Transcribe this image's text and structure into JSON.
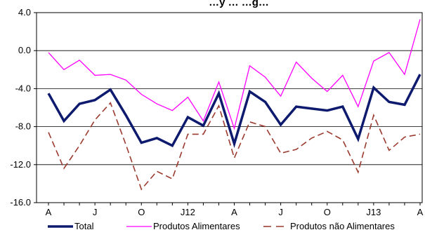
{
  "chart_data": {
    "type": "line",
    "title": "…y … …g…",
    "xlabel": "",
    "ylabel": "",
    "ylim": [
      -16,
      4
    ],
    "y_ticks": [
      "4.0",
      "0.0",
      "-4.0",
      "-8.0",
      "-12.0",
      "-16.0"
    ],
    "y_tick_values": [
      4,
      0,
      -4,
      -8,
      -12,
      -16
    ],
    "x_tick_labels": [
      "A",
      "J",
      "O",
      "J12",
      "A",
      "J",
      "O",
      "J13",
      "A"
    ],
    "x_tick_indices": [
      0,
      3,
      6,
      9,
      12,
      15,
      18,
      21,
      24
    ],
    "gridlines": true,
    "legend_position": "bottom",
    "series": [
      {
        "name": "Total",
        "color": "#0d1a6e",
        "style": "solid-thick",
        "values": [
          -4.5,
          -7.4,
          -5.6,
          -5.2,
          -4.1,
          -6.8,
          -9.7,
          -9.2,
          -10.0,
          -7.0,
          -7.9,
          -4.5,
          -9.8,
          -4.3,
          -5.4,
          -7.8,
          -5.9,
          -6.1,
          -6.3,
          -5.9,
          -9.3,
          -3.9,
          -5.4,
          -5.7,
          -2.5
        ]
      },
      {
        "name": "Produtos Alimentares",
        "color": "#ff00ff",
        "style": "solid-thin",
        "values": [
          -0.2,
          -2.0,
          -1.0,
          -2.6,
          -2.5,
          -3.1,
          -4.6,
          -5.6,
          -6.3,
          -4.9,
          -7.4,
          -3.3,
          -8.2,
          -1.6,
          -2.8,
          -4.8,
          -1.2,
          -2.9,
          -4.3,
          -2.6,
          -5.9,
          -1.1,
          -0.2,
          -2.5,
          3.3
        ]
      },
      {
        "name": "Produtos não Alimentares",
        "color": "#9b3b2f",
        "style": "dashed",
        "values": [
          -8.6,
          -12.4,
          -10.0,
          -7.3,
          -5.5,
          -9.9,
          -14.6,
          -12.7,
          -13.5,
          -8.8,
          -8.8,
          -5.8,
          -11.3,
          -7.5,
          -8.0,
          -10.8,
          -10.4,
          -9.2,
          -8.5,
          -9.4,
          -12.8,
          -6.8,
          -10.5,
          -9.1,
          -8.8
        ]
      }
    ]
  }
}
